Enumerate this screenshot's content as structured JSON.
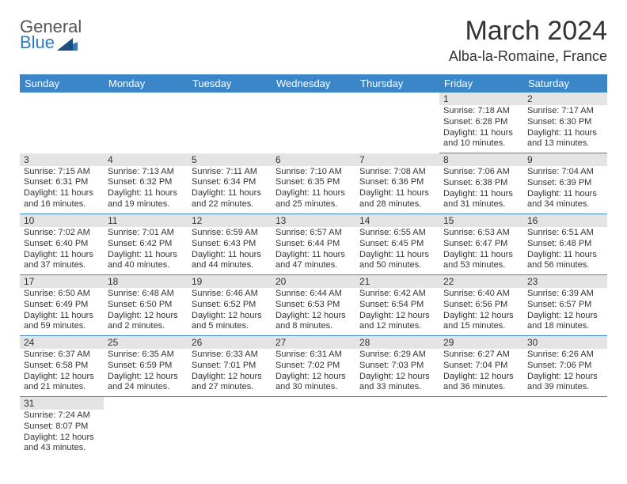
{
  "logo": {
    "text1": "General",
    "text2": "Blue"
  },
  "title": "March 2024",
  "location": "Alba-la-Romaine, France",
  "colors": {
    "header_bg": "#3a86c8",
    "header_text": "#ffffff",
    "daynum_bg": "#e4e4e4",
    "text": "#333333",
    "row_border": "#3a86c8",
    "logo_blue": "#2f7abf",
    "logo_gray": "#555555"
  },
  "weekdays": [
    "Sunday",
    "Monday",
    "Tuesday",
    "Wednesday",
    "Thursday",
    "Friday",
    "Saturday"
  ],
  "weeks": [
    [
      {
        "blank": true
      },
      {
        "blank": true
      },
      {
        "blank": true
      },
      {
        "blank": true
      },
      {
        "blank": true
      },
      {
        "day": "1",
        "sunrise": "7:18 AM",
        "sunset": "6:28 PM",
        "daylight": "11 hours and 10 minutes."
      },
      {
        "day": "2",
        "sunrise": "7:17 AM",
        "sunset": "6:30 PM",
        "daylight": "11 hours and 13 minutes."
      }
    ],
    [
      {
        "day": "3",
        "sunrise": "7:15 AM",
        "sunset": "6:31 PM",
        "daylight": "11 hours and 16 minutes."
      },
      {
        "day": "4",
        "sunrise": "7:13 AM",
        "sunset": "6:32 PM",
        "daylight": "11 hours and 19 minutes."
      },
      {
        "day": "5",
        "sunrise": "7:11 AM",
        "sunset": "6:34 PM",
        "daylight": "11 hours and 22 minutes."
      },
      {
        "day": "6",
        "sunrise": "7:10 AM",
        "sunset": "6:35 PM",
        "daylight": "11 hours and 25 minutes."
      },
      {
        "day": "7",
        "sunrise": "7:08 AM",
        "sunset": "6:36 PM",
        "daylight": "11 hours and 28 minutes."
      },
      {
        "day": "8",
        "sunrise": "7:06 AM",
        "sunset": "6:38 PM",
        "daylight": "11 hours and 31 minutes."
      },
      {
        "day": "9",
        "sunrise": "7:04 AM",
        "sunset": "6:39 PM",
        "daylight": "11 hours and 34 minutes."
      }
    ],
    [
      {
        "day": "10",
        "sunrise": "7:02 AM",
        "sunset": "6:40 PM",
        "daylight": "11 hours and 37 minutes."
      },
      {
        "day": "11",
        "sunrise": "7:01 AM",
        "sunset": "6:42 PM",
        "daylight": "11 hours and 40 minutes."
      },
      {
        "day": "12",
        "sunrise": "6:59 AM",
        "sunset": "6:43 PM",
        "daylight": "11 hours and 44 minutes."
      },
      {
        "day": "13",
        "sunrise": "6:57 AM",
        "sunset": "6:44 PM",
        "daylight": "11 hours and 47 minutes."
      },
      {
        "day": "14",
        "sunrise": "6:55 AM",
        "sunset": "6:45 PM",
        "daylight": "11 hours and 50 minutes."
      },
      {
        "day": "15",
        "sunrise": "6:53 AM",
        "sunset": "6:47 PM",
        "daylight": "11 hours and 53 minutes."
      },
      {
        "day": "16",
        "sunrise": "6:51 AM",
        "sunset": "6:48 PM",
        "daylight": "11 hours and 56 minutes."
      }
    ],
    [
      {
        "day": "17",
        "sunrise": "6:50 AM",
        "sunset": "6:49 PM",
        "daylight": "11 hours and 59 minutes."
      },
      {
        "day": "18",
        "sunrise": "6:48 AM",
        "sunset": "6:50 PM",
        "daylight": "12 hours and 2 minutes."
      },
      {
        "day": "19",
        "sunrise": "6:46 AM",
        "sunset": "6:52 PM",
        "daylight": "12 hours and 5 minutes."
      },
      {
        "day": "20",
        "sunrise": "6:44 AM",
        "sunset": "6:53 PM",
        "daylight": "12 hours and 8 minutes."
      },
      {
        "day": "21",
        "sunrise": "6:42 AM",
        "sunset": "6:54 PM",
        "daylight": "12 hours and 12 minutes."
      },
      {
        "day": "22",
        "sunrise": "6:40 AM",
        "sunset": "6:56 PM",
        "daylight": "12 hours and 15 minutes."
      },
      {
        "day": "23",
        "sunrise": "6:39 AM",
        "sunset": "6:57 PM",
        "daylight": "12 hours and 18 minutes."
      }
    ],
    [
      {
        "day": "24",
        "sunrise": "6:37 AM",
        "sunset": "6:58 PM",
        "daylight": "12 hours and 21 minutes."
      },
      {
        "day": "25",
        "sunrise": "6:35 AM",
        "sunset": "6:59 PM",
        "daylight": "12 hours and 24 minutes."
      },
      {
        "day": "26",
        "sunrise": "6:33 AM",
        "sunset": "7:01 PM",
        "daylight": "12 hours and 27 minutes."
      },
      {
        "day": "27",
        "sunrise": "6:31 AM",
        "sunset": "7:02 PM",
        "daylight": "12 hours and 30 minutes."
      },
      {
        "day": "28",
        "sunrise": "6:29 AM",
        "sunset": "7:03 PM",
        "daylight": "12 hours and 33 minutes."
      },
      {
        "day": "29",
        "sunrise": "6:27 AM",
        "sunset": "7:04 PM",
        "daylight": "12 hours and 36 minutes."
      },
      {
        "day": "30",
        "sunrise": "6:26 AM",
        "sunset": "7:06 PM",
        "daylight": "12 hours and 39 minutes."
      }
    ],
    [
      {
        "day": "31",
        "sunrise": "7:24 AM",
        "sunset": "8:07 PM",
        "daylight": "12 hours and 43 minutes."
      },
      {
        "blank": true
      },
      {
        "blank": true
      },
      {
        "blank": true
      },
      {
        "blank": true
      },
      {
        "blank": true
      },
      {
        "blank": true
      }
    ]
  ]
}
